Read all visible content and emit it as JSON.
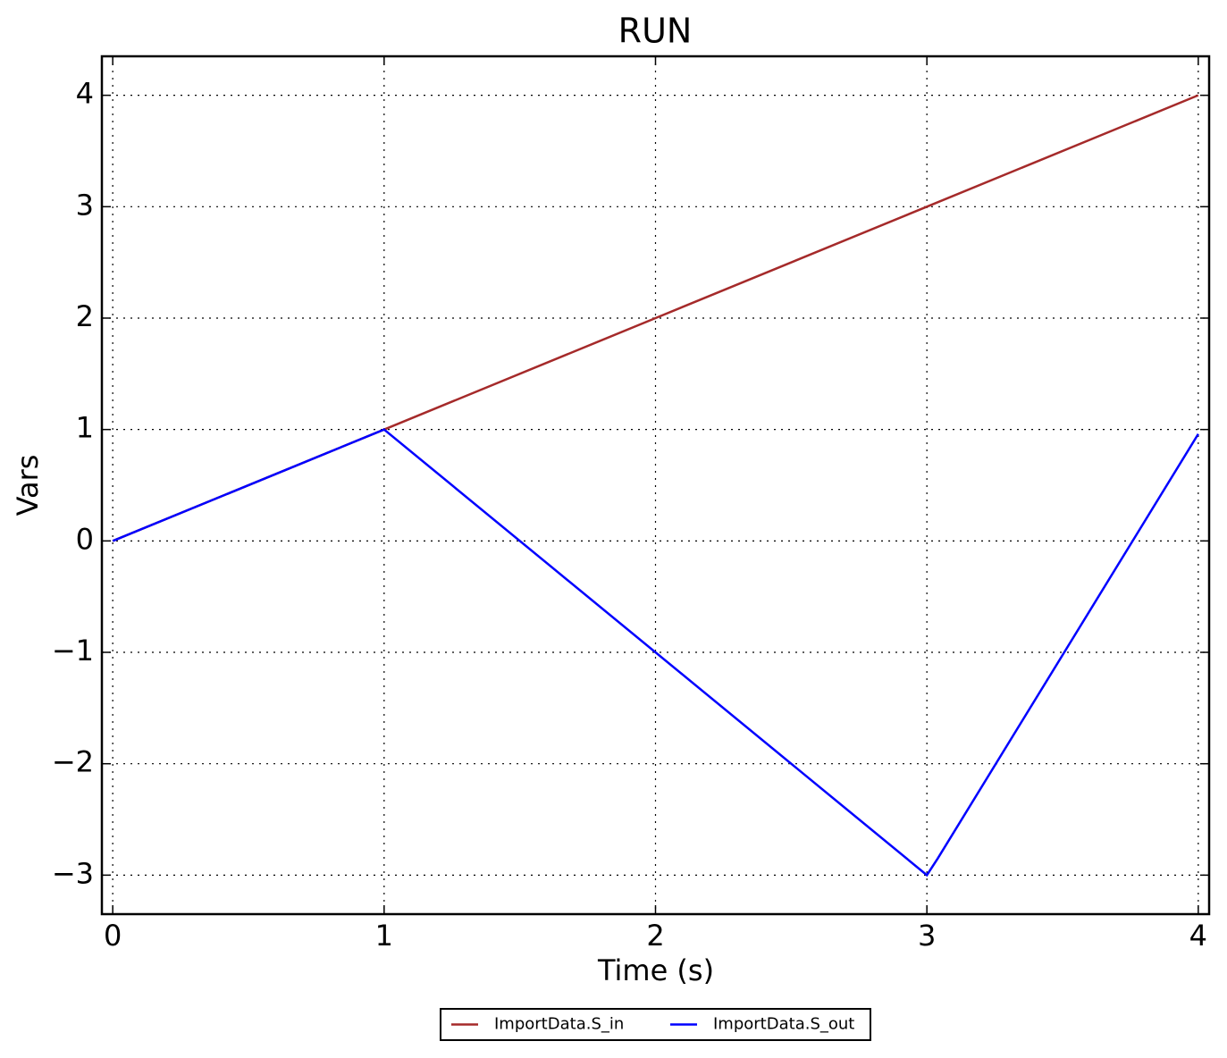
{
  "chart_data": {
    "type": "line",
    "title": "RUN",
    "xlabel": "Time (s)",
    "ylabel": "Vars",
    "xlim": [
      -0.04,
      4.04
    ],
    "ylim": [
      -3.35,
      4.35
    ],
    "xticks": [
      0,
      1,
      2,
      3,
      4
    ],
    "yticks": [
      {
        "value": -3,
        "label": "−3"
      },
      {
        "value": -2,
        "label": "−2"
      },
      {
        "value": -1,
        "label": "−1"
      },
      0,
      1,
      2,
      3,
      4
    ],
    "grid": true,
    "legend": "below",
    "series": [
      {
        "name": "ImportData.S_in",
        "color": "#a52a2a",
        "x": [
          0,
          1,
          2,
          3,
          4
        ],
        "values": [
          0,
          1,
          2,
          3,
          4
        ]
      },
      {
        "name": "ImportData.S_out",
        "color": "#0000ff",
        "x": [
          0,
          1,
          3,
          3.04,
          4
        ],
        "values": [
          0,
          1,
          -3,
          -2.85,
          0.96
        ]
      }
    ]
  }
}
